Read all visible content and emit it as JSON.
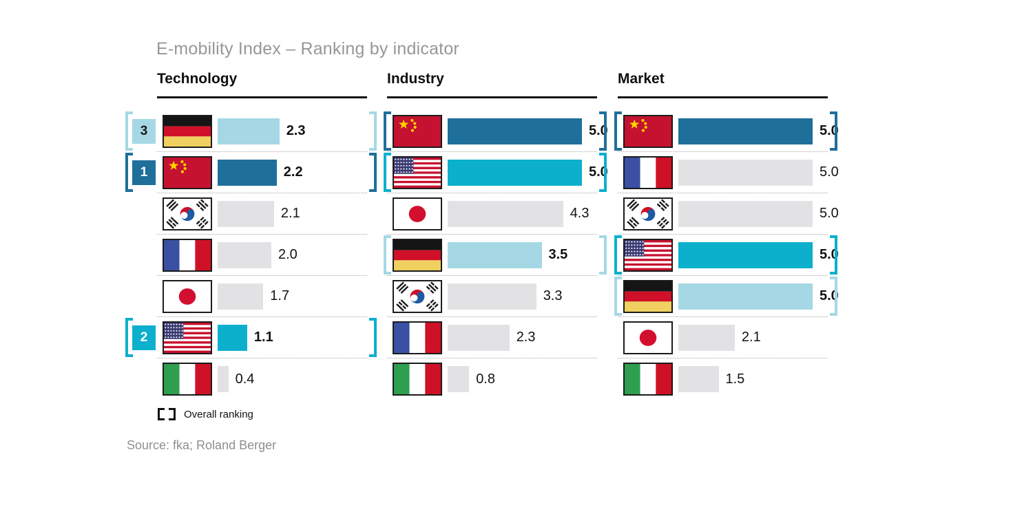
{
  "title": "E-mobility Index – Ranking by indicator",
  "legend_label": "Overall ranking",
  "source": "Source: fka; Roland Berger",
  "colors": {
    "dark_blue": "#1F6F9B",
    "cyan": "#0CB0CD",
    "light_blue": "#A5D8E4",
    "gray_bar": "#E2E2E5",
    "header_black": "#111111",
    "title_gray": "#97979B"
  },
  "chart_data": {
    "type": "bar",
    "title": "E-mobility Index – Ranking by indicator",
    "orientation": "horizontal",
    "value_range": [
      0,
      5
    ],
    "grid": false,
    "legend": "Overall ranking (bracketed rows); bracket/bar color encodes country highlight",
    "columns": [
      {
        "label": "Technology",
        "rows": [
          {
            "country": "Germany",
            "flag": "de",
            "value": 2.3,
            "display": "2.3",
            "style": "lightblue",
            "highlight": true,
            "rank": 3
          },
          {
            "country": "China",
            "flag": "cn",
            "value": 2.2,
            "display": "2.2",
            "style": "darkblue",
            "highlight": true,
            "rank": 1
          },
          {
            "country": "South Korea",
            "flag": "kr",
            "value": 2.1,
            "display": "2.1",
            "style": "gray",
            "highlight": false
          },
          {
            "country": "France",
            "flag": "fr",
            "value": 2.0,
            "display": "2.0",
            "style": "gray",
            "highlight": false
          },
          {
            "country": "Japan",
            "flag": "jp",
            "value": 1.7,
            "display": "1.7",
            "style": "gray",
            "highlight": false
          },
          {
            "country": "USA",
            "flag": "us",
            "value": 1.1,
            "display": "1.1",
            "style": "cyan",
            "highlight": true,
            "rank": 2
          },
          {
            "country": "Italy",
            "flag": "it",
            "value": 0.4,
            "display": "0.4",
            "style": "gray",
            "highlight": false
          }
        ]
      },
      {
        "label": "Industry",
        "rows": [
          {
            "country": "China",
            "flag": "cn",
            "value": 5.0,
            "display": "5.0",
            "style": "darkblue",
            "highlight": true
          },
          {
            "country": "USA",
            "flag": "us",
            "value": 5.0,
            "display": "5.0",
            "style": "cyan",
            "highlight": true
          },
          {
            "country": "Japan",
            "flag": "jp",
            "value": 4.3,
            "display": "4.3",
            "style": "gray",
            "highlight": false
          },
          {
            "country": "Germany",
            "flag": "de",
            "value": 3.5,
            "display": "3.5",
            "style": "lightblue",
            "highlight": true
          },
          {
            "country": "South Korea",
            "flag": "kr",
            "value": 3.3,
            "display": "3.3",
            "style": "gray",
            "highlight": false
          },
          {
            "country": "France",
            "flag": "fr",
            "value": 2.3,
            "display": "2.3",
            "style": "gray",
            "highlight": false
          },
          {
            "country": "Italy",
            "flag": "it",
            "value": 0.8,
            "display": "0.8",
            "style": "gray",
            "highlight": false
          }
        ]
      },
      {
        "label": "Market",
        "rows": [
          {
            "country": "China",
            "flag": "cn",
            "value": 5.0,
            "display": "5.0",
            "style": "darkblue",
            "highlight": true
          },
          {
            "country": "France",
            "flag": "fr",
            "value": 5.0,
            "display": "5.0",
            "style": "gray",
            "highlight": false
          },
          {
            "country": "South Korea",
            "flag": "kr",
            "value": 5.0,
            "display": "5.0",
            "style": "gray",
            "highlight": false
          },
          {
            "country": "USA",
            "flag": "us",
            "value": 5.0,
            "display": "5.0",
            "style": "cyan",
            "highlight": true
          },
          {
            "country": "Germany",
            "flag": "de",
            "value": 5.0,
            "display": "5.0",
            "style": "lightblue",
            "highlight": true
          },
          {
            "country": "Japan",
            "flag": "jp",
            "value": 2.1,
            "display": "2.1",
            "style": "gray",
            "highlight": false
          },
          {
            "country": "Italy",
            "flag": "it",
            "value": 1.5,
            "display": "1.5",
            "style": "gray",
            "highlight": false
          }
        ]
      }
    ]
  }
}
